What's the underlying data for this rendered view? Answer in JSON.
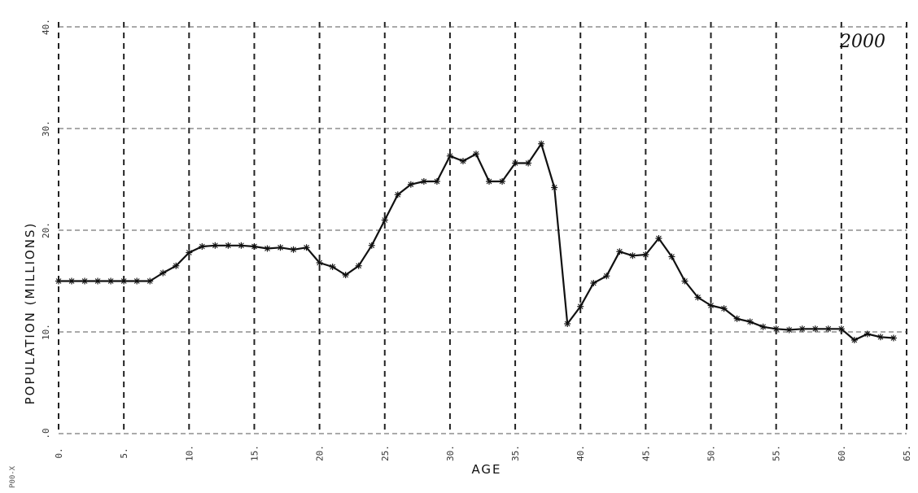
{
  "chart_data": {
    "type": "line",
    "title": "",
    "annotation": "2000",
    "xlabel": "AGE",
    "ylabel": "POPULATION (MILLIONS)",
    "xlim": [
      0,
      65
    ],
    "ylim": [
      0,
      40
    ],
    "x_ticks": [
      0,
      5,
      10,
      15,
      20,
      25,
      30,
      35,
      40,
      45,
      50,
      55,
      60,
      65
    ],
    "x_tick_labels": [
      "0.",
      "5.",
      "10.",
      "15.",
      "20.",
      "25.",
      "30.",
      "35.",
      "40.",
      "45.",
      "50.",
      "55.",
      "60.",
      "65."
    ],
    "y_ticks": [
      0,
      10,
      20,
      30,
      40
    ],
    "y_tick_labels": [
      ".0",
      "10.",
      "20.",
      "30.",
      "40."
    ],
    "grid": true,
    "marker": "asterisk",
    "corner_label": "P00-X",
    "series": [
      {
        "x": [
          0,
          1,
          2,
          3,
          4,
          5,
          6,
          7,
          8,
          9,
          10,
          11,
          12,
          13,
          14,
          15,
          16,
          17,
          18,
          19,
          20,
          21,
          22,
          23,
          24,
          25,
          26,
          27,
          28,
          29,
          30,
          31,
          32,
          33,
          34,
          35,
          36,
          37,
          38,
          39,
          40,
          41,
          42,
          43,
          44,
          45,
          46,
          47,
          48,
          49,
          50,
          51,
          52,
          53,
          54,
          55,
          56,
          57,
          58,
          59,
          60,
          61,
          62,
          63,
          64
        ],
        "y": [
          15.0,
          15.0,
          15.0,
          15.0,
          15.0,
          15.0,
          15.0,
          15.0,
          15.8,
          16.5,
          17.8,
          18.4,
          18.5,
          18.5,
          18.5,
          18.4,
          18.2,
          18.3,
          18.1,
          18.3,
          16.8,
          16.4,
          15.6,
          16.5,
          18.5,
          21.0,
          23.5,
          24.5,
          24.8,
          24.8,
          27.3,
          26.8,
          27.5,
          24.8,
          24.8,
          26.6,
          26.6,
          28.5,
          24.2,
          10.8,
          12.5,
          14.8,
          15.5,
          17.9,
          17.5,
          17.6,
          19.2,
          17.4,
          15.0,
          13.4,
          12.6,
          12.3,
          11.3,
          11.0,
          10.5,
          10.3,
          10.2,
          10.3,
          10.3,
          10.3,
          10.3,
          9.2,
          9.8,
          9.5,
          9.4
        ]
      }
    ]
  }
}
